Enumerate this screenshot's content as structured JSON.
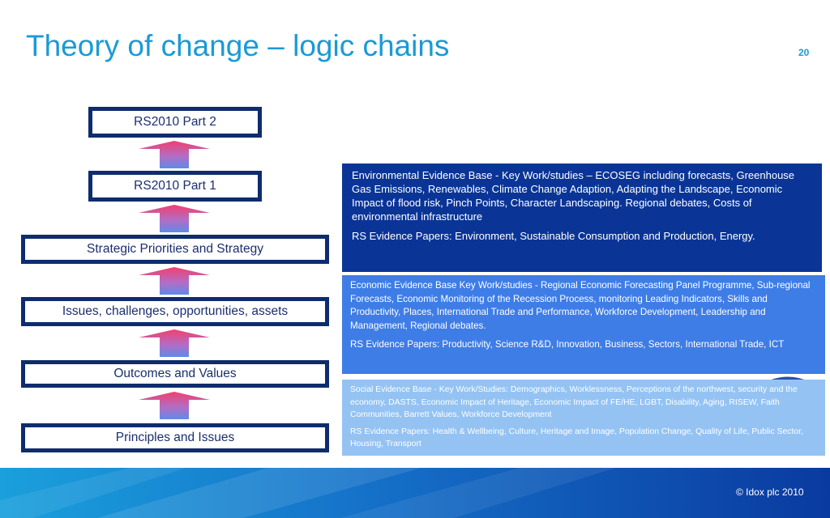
{
  "slide": {
    "title": "Theory of change – logic chains",
    "page_number": "20",
    "copyright": "© Idox plc 2010"
  },
  "logic_chain": {
    "levels": [
      "RS2010 Part 2",
      "RS2010 Part 1",
      "Strategic Priorities and Strategy",
      "Issues, challenges, opportunities, assets",
      "Outcomes and Values",
      "Principles and Issues"
    ]
  },
  "evidence": {
    "environmental": {
      "key_work": "Environmental Evidence Base - Key Work/studies – ECOSEG including forecasts, Greenhouse Gas Emissions, Renewables, Climate Change Adaption, Adapting the Landscape, Economic Impact of flood risk, Pinch Points, Character Landscaping. Regional debates, Costs of environmental infrastructure",
      "papers": "RS Evidence Papers: Environment, Sustainable Consumption and Production, Energy.",
      "color": "#0a3597"
    },
    "economic": {
      "key_work": "Economic Evidence Base Key Work/studies - Regional Economic Forecasting Panel Programme, Sub-regional Forecasts, Economic Monitoring of the Recession Process, monitoring Leading Indicators, Skills and Productivity, Places, International Trade and Performance, Workforce Development, Leadership and Management, Regional debates.",
      "papers": "RS Evidence Papers: Productivity, Science R&D, Innovation, Business, Sectors, International Trade, ICT",
      "color": "#3f7de6"
    },
    "social": {
      "key_work": "Social Evidence Base - Key Work/Studies: Demographics, Worklessness, Perceptions of the northwest, security and the economy, DASTS, Economic Impact of Heritage, Economic Impact of FE/HE, LGBT, Disability, Aging, RISEW, Faith Communities, Barrett Values, Workforce Development",
      "papers": "RS Evidence Papers: Health & Wellbeing, Culture, Heritage and Image, Population Change, Quality of Life, Public Sector, Housing, Transport",
      "color": "#94c3f3"
    }
  }
}
